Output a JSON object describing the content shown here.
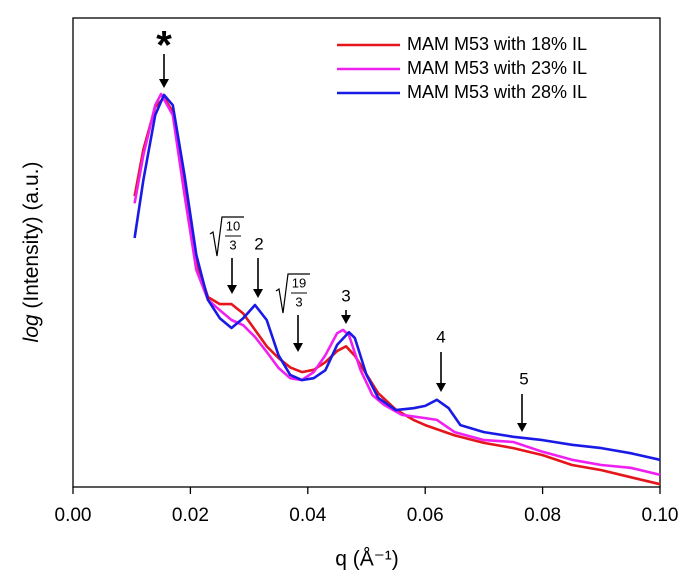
{
  "chart_data": {
    "type": "line",
    "xlabel": "q (Å⁻¹)",
    "ylabel": {
      "italic": "log",
      "rest": " (Intensity) (a.u.)"
    },
    "xlim": [
      0,
      0.1
    ],
    "ylim": [
      0,
      100
    ],
    "xticks": [
      {
        "value": 0,
        "label": "0.00"
      },
      {
        "value": 0.02,
        "label": "0.02"
      },
      {
        "value": 0.04,
        "label": "0.04"
      },
      {
        "value": 0.06,
        "label": "0.06"
      },
      {
        "value": 0.08,
        "label": "0.08"
      },
      {
        "value": 0.1,
        "label": "0.10"
      }
    ],
    "legend": "top-right",
    "series": [
      {
        "name": "MAM M53 with 18% IL",
        "color": "#e4161c",
        "x": [
          0.0105,
          0.012,
          0.014,
          0.0155,
          0.017,
          0.019,
          0.021,
          0.023,
          0.025,
          0.027,
          0.029,
          0.031,
          0.033,
          0.035,
          0.037,
          0.039,
          0.041,
          0.043,
          0.045,
          0.0465,
          0.048,
          0.05,
          0.052,
          0.055,
          0.058,
          0.06,
          0.065,
          0.07,
          0.075,
          0.08,
          0.085,
          0.09,
          0.095,
          0.1
        ],
        "values": [
          62,
          72,
          81,
          83,
          80,
          65,
          48,
          40.5,
          39,
          39,
          37,
          33.5,
          30,
          27.5,
          25.5,
          24.5,
          25,
          26.6,
          29,
          30,
          28,
          24,
          20,
          16.5,
          14.3,
          13.2,
          11,
          9.4,
          8.3,
          6.8,
          4.7,
          3.6,
          2.1,
          0.6
        ]
      },
      {
        "name": "MAM M53 with 23% IL",
        "color": "#f020f0",
        "x": [
          0.0105,
          0.012,
          0.014,
          0.015,
          0.017,
          0.019,
          0.021,
          0.023,
          0.025,
          0.027,
          0.029,
          0.031,
          0.033,
          0.035,
          0.037,
          0.039,
          0.041,
          0.043,
          0.045,
          0.046,
          0.047,
          0.049,
          0.051,
          0.053,
          0.056,
          0.06,
          0.062,
          0.065,
          0.07,
          0.075,
          0.08,
          0.085,
          0.09,
          0.095,
          0.1
        ],
        "values": [
          60.5,
          70.8,
          81.4,
          83.8,
          79.3,
          62.3,
          46.3,
          39.9,
          37.7,
          35.6,
          34.5,
          32,
          28.8,
          25.4,
          23.2,
          22.8,
          24.5,
          28.1,
          32.8,
          33.5,
          32.4,
          24.9,
          19.6,
          17.5,
          15.4,
          14.7,
          14.3,
          11.7,
          10,
          9.6,
          7.5,
          5.8,
          4.7,
          4.1,
          2.6
        ]
      },
      {
        "name": "MAM M53 with 28% IL",
        "color": "#1a1ae6",
        "x": [
          0.0105,
          0.012,
          0.014,
          0.0155,
          0.017,
          0.019,
          0.021,
          0.023,
          0.025,
          0.027,
          0.029,
          0.031,
          0.033,
          0.035,
          0.037,
          0.039,
          0.041,
          0.043,
          0.045,
          0.047,
          0.048,
          0.05,
          0.052,
          0.055,
          0.058,
          0.06,
          0.062,
          0.064,
          0.066,
          0.07,
          0.075,
          0.08,
          0.085,
          0.09,
          0.095,
          0.1
        ],
        "values": [
          53.1,
          65.5,
          79.3,
          83.6,
          81.4,
          66.5,
          49.5,
          39.9,
          36,
          33.9,
          36,
          38.8,
          35.6,
          28.1,
          23.9,
          22.8,
          23.2,
          24.9,
          30.3,
          33,
          31.8,
          23.9,
          19,
          16.4,
          16.8,
          17.3,
          18.6,
          16.8,
          13.2,
          11.7,
          10.7,
          10,
          9,
          8.3,
          7.2,
          5.8
        ]
      }
    ],
    "annotations": [
      {
        "label": "*"
      },
      {
        "numerator": "10",
        "denominator": "3"
      },
      {
        "label": "2"
      },
      {
        "numerator": "19",
        "denominator": "3"
      },
      {
        "label": "3"
      },
      {
        "label": "4"
      },
      {
        "label": "5"
      }
    ]
  }
}
